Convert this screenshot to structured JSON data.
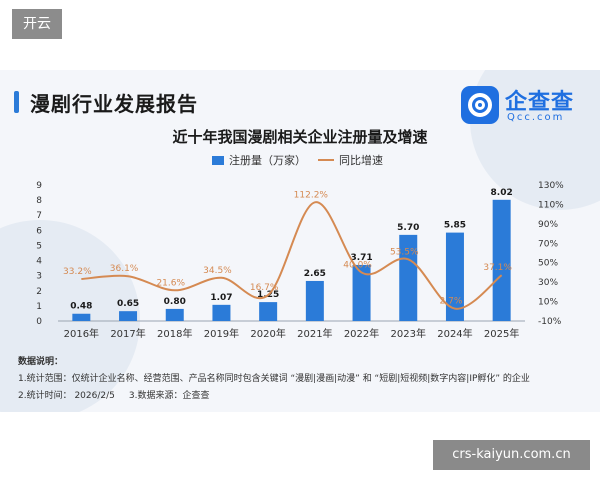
{
  "watermark_top": "开云",
  "watermark_bottom": "crs-kaiyun.com.cn",
  "header": {
    "title": "漫剧行业发展报告"
  },
  "logo": {
    "name": "企查查",
    "sub": "Qcc.com"
  },
  "legend": {
    "bar_label": "注册量（万家）",
    "line_label": "同比增速"
  },
  "notes": {
    "heading": "数据说明：",
    "line1": "1.统计范围：仅统计企业名称、经营范围、产品名称同时包含关键词 “漫剧|漫画|动漫” 和 “短剧|短视频|数字内容|IP孵化” 的企业",
    "line2a": "2.统计时间： 2026/2/5",
    "line2b": "3.数据来源：企查查"
  },
  "colors": {
    "bar": "#2b7bd8",
    "line": "#d58a52",
    "growth_label": "#d58a52",
    "axis_text": "#333333"
  },
  "chart_data": {
    "type": "bar",
    "title": "近十年我国漫剧相关企业注册量及增速",
    "categories": [
      "2016年",
      "2017年",
      "2018年",
      "2019年",
      "2020年",
      "2021年",
      "2022年",
      "2023年",
      "2024年",
      "2025年"
    ],
    "series": [
      {
        "name": "注册量（万家）",
        "type": "bar",
        "axis": "left",
        "values": [
          0.48,
          0.65,
          0.8,
          1.07,
          1.25,
          2.65,
          3.71,
          5.7,
          5.85,
          8.02
        ],
        "labels": [
          "0.48",
          "0.65",
          "0.80",
          "1.07",
          "1.25",
          "2.65",
          "3.71",
          "5.70",
          "5.85",
          "8.02"
        ]
      },
      {
        "name": "同比增速",
        "type": "line",
        "axis": "right",
        "values": [
          33.2,
          36.1,
          21.6,
          34.5,
          16.7,
          112.2,
          40.0,
          53.5,
          2.7,
          37.1
        ],
        "labels": [
          "33.2%",
          "36.1%",
          "21.6%",
          "34.5%",
          "16.7%",
          "112.2%",
          "40.0%",
          "53.5%",
          "2.7%",
          "37.1%"
        ]
      }
    ],
    "y_left": {
      "min": 0,
      "max": 9,
      "ticks": [
        "0",
        "1",
        "2",
        "3",
        "4",
        "5",
        "6",
        "7",
        "8",
        "9"
      ]
    },
    "y_right": {
      "min": -10,
      "max": 130,
      "ticks": [
        "-10%",
        "10%",
        "30%",
        "50%",
        "70%",
        "90%",
        "110%",
        "130%"
      ]
    },
    "grid": false,
    "legend_position": "top-center"
  }
}
